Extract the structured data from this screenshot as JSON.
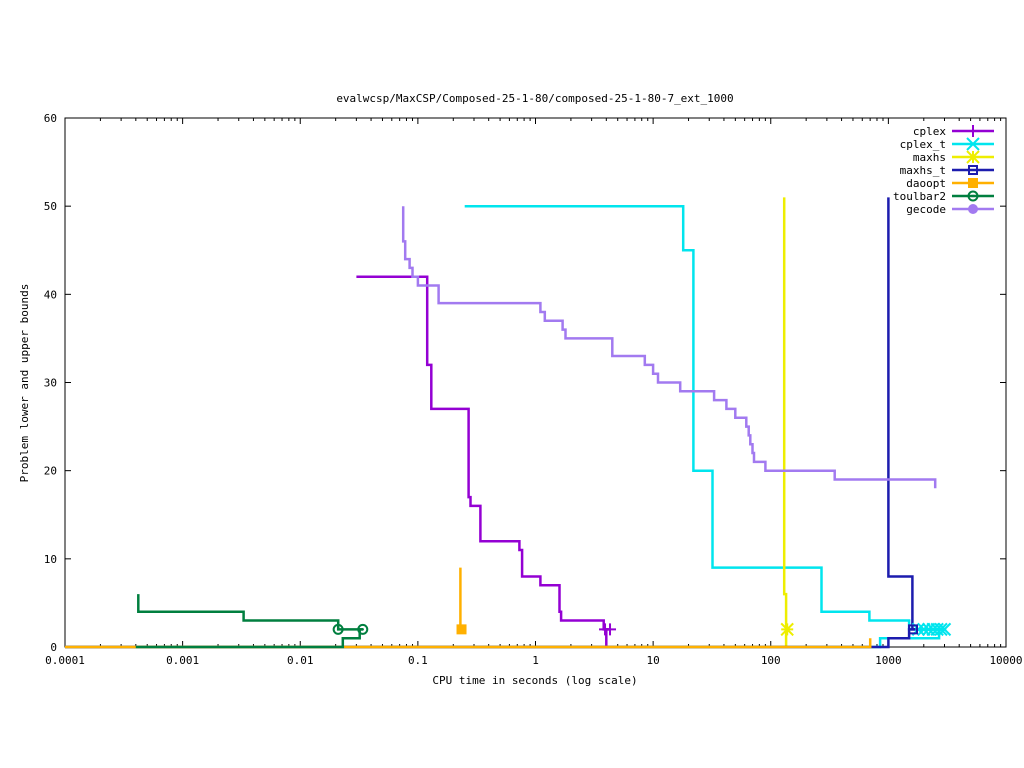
{
  "chart_data": {
    "type": "line",
    "title": "evalwcsp/MaxCSP/Composed-25-1-80/composed-25-1-80-7_ext_1000",
    "xlabel": "CPU time in seconds (log scale)",
    "ylabel": "Problem lower and upper bounds",
    "x_scale": "log",
    "xlim": [
      0.0001,
      10000
    ],
    "ylim": [
      0,
      60
    ],
    "x_ticks": [
      0.0001,
      0.001,
      0.01,
      0.1,
      1,
      10,
      100,
      1000,
      10000
    ],
    "x_tick_labels": [
      "0.0001",
      "0.001",
      "0.01",
      "0.1",
      "1",
      "10",
      "100",
      "1000",
      "10000"
    ],
    "y_ticks": [
      0,
      10,
      20,
      30,
      40,
      50,
      60
    ],
    "y_tick_labels": [
      "0",
      "10",
      "20",
      "30",
      "40",
      "50",
      "60"
    ],
    "grid": false,
    "legend_position": "top-right",
    "series": [
      {
        "name": "cplex",
        "color": "#9400d3",
        "marker": "plus",
        "upper": [
          [
            0.03,
            42
          ],
          [
            0.12,
            42
          ],
          [
            0.12,
            32
          ],
          [
            0.13,
            32
          ],
          [
            0.13,
            27
          ],
          [
            0.27,
            27
          ],
          [
            0.27,
            17
          ],
          [
            0.28,
            17
          ],
          [
            0.28,
            16
          ],
          [
            0.34,
            16
          ],
          [
            0.34,
            12
          ],
          [
            0.73,
            12
          ],
          [
            0.73,
            11
          ],
          [
            0.77,
            11
          ],
          [
            0.77,
            8
          ],
          [
            1.1,
            8
          ],
          [
            1.1,
            7
          ],
          [
            1.6,
            7
          ],
          [
            1.6,
            4
          ],
          [
            1.65,
            4
          ],
          [
            1.65,
            3
          ],
          [
            3.8,
            3
          ],
          [
            3.8,
            2
          ],
          [
            4.2,
            2
          ]
        ],
        "lower": [
          [
            0.0001,
            0
          ],
          [
            4.0,
            0
          ],
          [
            4.0,
            2
          ],
          [
            4.2,
            2
          ]
        ],
        "marker_points": [
          [
            3.9,
            2
          ],
          [
            4.3,
            2
          ]
        ]
      },
      {
        "name": "cplex_t",
        "color": "#00e5ee",
        "marker": "cross",
        "upper": [
          [
            0.25,
            50
          ],
          [
            18,
            50
          ],
          [
            18,
            45
          ],
          [
            22,
            45
          ],
          [
            22,
            20
          ],
          [
            32,
            20
          ],
          [
            32,
            9
          ],
          [
            270,
            9
          ],
          [
            270,
            4
          ],
          [
            690,
            4
          ],
          [
            690,
            3
          ],
          [
            1500,
            3
          ],
          [
            1500,
            2
          ],
          [
            3100,
            2
          ]
        ],
        "lower": [
          [
            0.0001,
            0
          ],
          [
            850,
            0
          ],
          [
            850,
            1
          ],
          [
            2700,
            1
          ],
          [
            2700,
            2
          ],
          [
            3100,
            2
          ]
        ],
        "marker_points": [
          [
            1800,
            2
          ],
          [
            2000,
            2
          ],
          [
            2200,
            2
          ],
          [
            2400,
            2
          ],
          [
            2600,
            2
          ],
          [
            2800,
            2
          ],
          [
            3000,
            2
          ]
        ]
      },
      {
        "name": "maxhs",
        "color": "#eeee00",
        "marker": "star",
        "upper": [
          [
            130,
            51
          ],
          [
            130,
            6
          ],
          [
            135,
            6
          ],
          [
            135,
            2
          ],
          [
            140,
            2
          ]
        ],
        "lower": [
          [
            0.0001,
            0
          ],
          [
            135,
            0
          ],
          [
            135,
            2
          ],
          [
            140,
            2
          ]
        ],
        "marker_points": [
          [
            138,
            2
          ]
        ]
      },
      {
        "name": "maxhs_t",
        "color": "#1c1cae",
        "marker": "square",
        "upper": [
          [
            1000,
            51
          ],
          [
            1000,
            8
          ],
          [
            1600,
            8
          ],
          [
            1600,
            2
          ],
          [
            1700,
            2
          ]
        ],
        "lower": [
          [
            0.0001,
            0
          ],
          [
            1000,
            0
          ],
          [
            1000,
            1
          ],
          [
            1500,
            1
          ],
          [
            1500,
            2
          ],
          [
            1700,
            2
          ]
        ],
        "marker_points": [
          [
            1620,
            2
          ]
        ]
      },
      {
        "name": "daoopt",
        "color": "#ffb000",
        "marker": "filled-square",
        "upper": [
          [
            0.23,
            9
          ],
          [
            0.23,
            2
          ],
          [
            0.24,
            2
          ]
        ],
        "lower": [
          [
            0.0001,
            0
          ],
          [
            700,
            0
          ],
          [
            700,
            1
          ]
        ],
        "marker_points": [
          [
            0.235,
            2
          ]
        ]
      },
      {
        "name": "toulbar2",
        "color": "#007f3f",
        "marker": "circle",
        "upper": [
          [
            0.00042,
            6
          ],
          [
            0.00042,
            4
          ],
          [
            0.0033,
            4
          ],
          [
            0.0033,
            3
          ],
          [
            0.021,
            3
          ],
          [
            0.021,
            2
          ],
          [
            0.034,
            2
          ]
        ],
        "lower": [
          [
            0.0004,
            0
          ],
          [
            0.023,
            0
          ],
          [
            0.023,
            1
          ],
          [
            0.032,
            1
          ],
          [
            0.032,
            2
          ],
          [
            0.034,
            2
          ]
        ],
        "marker_points": [
          [
            0.021,
            2
          ],
          [
            0.034,
            2
          ]
        ]
      },
      {
        "name": "gecode",
        "color": "#a27af0",
        "marker": "filled-circle",
        "upper": [
          [
            0.075,
            50
          ],
          [
            0.075,
            46
          ],
          [
            0.078,
            46
          ],
          [
            0.078,
            44
          ],
          [
            0.085,
            44
          ],
          [
            0.085,
            43
          ],
          [
            0.09,
            43
          ],
          [
            0.09,
            42
          ],
          [
            0.1,
            42
          ],
          [
            0.1,
            41
          ],
          [
            0.15,
            41
          ],
          [
            0.15,
            39
          ],
          [
            1.1,
            39
          ],
          [
            1.1,
            38
          ],
          [
            1.2,
            38
          ],
          [
            1.2,
            37
          ],
          [
            1.7,
            37
          ],
          [
            1.7,
            36
          ],
          [
            1.8,
            36
          ],
          [
            1.8,
            35
          ],
          [
            4.5,
            35
          ],
          [
            4.5,
            33
          ],
          [
            8.5,
            33
          ],
          [
            8.5,
            32
          ],
          [
            10,
            32
          ],
          [
            10,
            31
          ],
          [
            11,
            31
          ],
          [
            11,
            30
          ],
          [
            17,
            30
          ],
          [
            17,
            29
          ],
          [
            33,
            29
          ],
          [
            33,
            28
          ],
          [
            42,
            28
          ],
          [
            42,
            27
          ],
          [
            50,
            27
          ],
          [
            50,
            26
          ],
          [
            62,
            26
          ],
          [
            62,
            25
          ],
          [
            65,
            25
          ],
          [
            65,
            24
          ],
          [
            67,
            24
          ],
          [
            67,
            23
          ],
          [
            70,
            23
          ],
          [
            70,
            22
          ],
          [
            72,
            22
          ],
          [
            72,
            21
          ],
          [
            90,
            21
          ],
          [
            90,
            20
          ],
          [
            350,
            20
          ],
          [
            350,
            19
          ],
          [
            2500,
            19
          ],
          [
            2500,
            18
          ]
        ],
        "lower": [],
        "marker_points": []
      }
    ]
  }
}
